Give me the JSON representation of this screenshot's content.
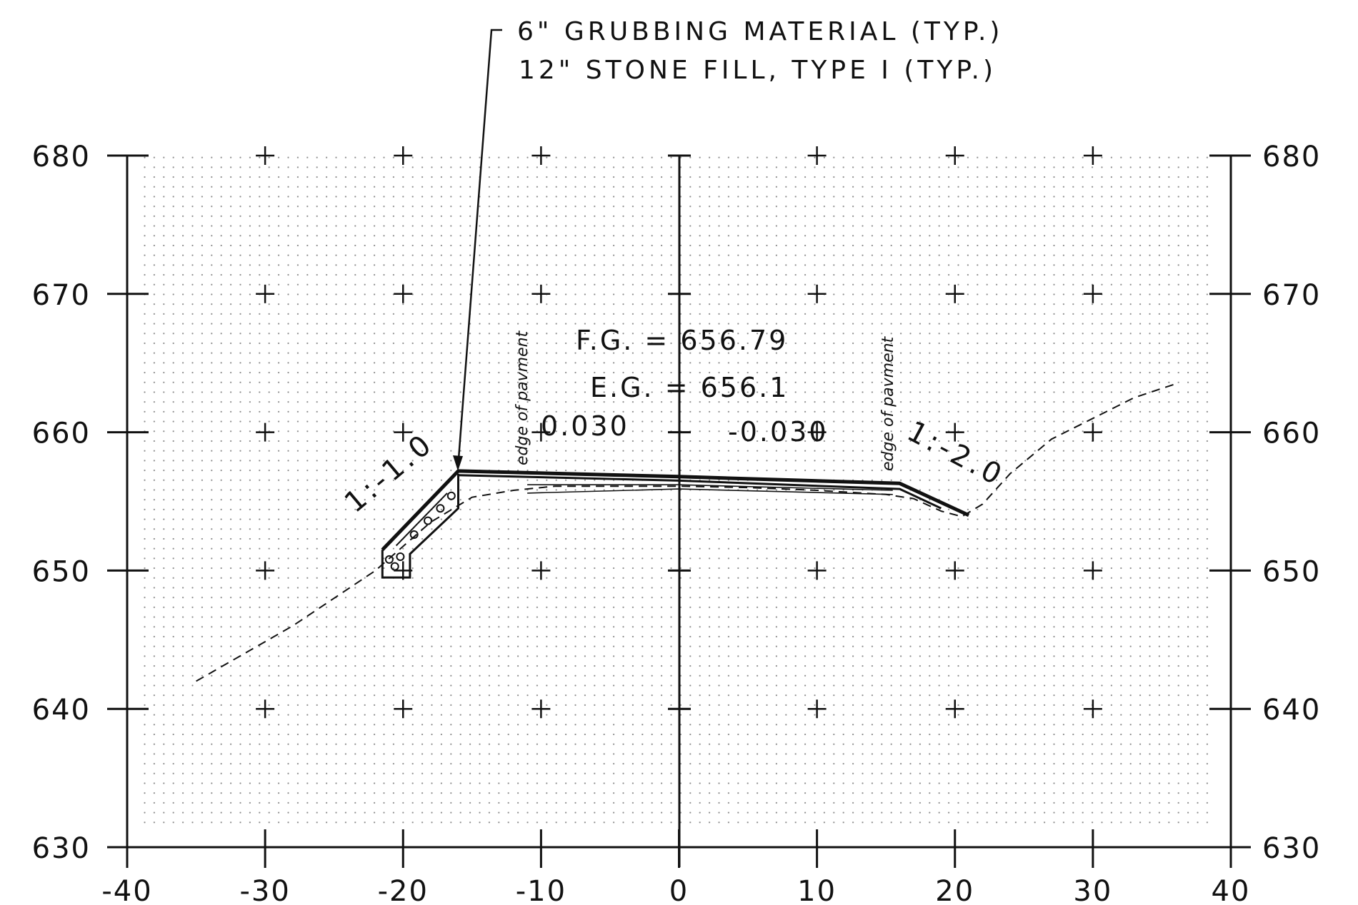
{
  "callout": {
    "line1": "6\" GRUBBING MATERIAL (TYP.)",
    "line2": "12\" STONE FILL, TYPE I (TYP.)"
  },
  "annotations": {
    "fg": "F.G. = 656.79",
    "eg": "E.G. = 656.1",
    "slope_left_pct": "0.030",
    "slope_right_pct": "-0.030",
    "side_slope_left": "1:-1.0",
    "side_slope_right": "1:-2.0",
    "edge_label_left": "edge of pavment",
    "edge_label_right": "edge of pavment"
  },
  "colors": {
    "line": "#111111",
    "grid_dot": "#8a8a8a",
    "background": "#ffffff"
  },
  "chart_data": {
    "type": "line",
    "title": "",
    "xlabel": "",
    "ylabel": "",
    "xlim": [
      -40,
      40
    ],
    "ylim": [
      630,
      680
    ],
    "x_ticks": [
      -40,
      -30,
      -20,
      -10,
      0,
      10,
      20,
      30,
      40
    ],
    "x_tick_labels": [
      "-40",
      "-30",
      "-20",
      "-10",
      "0",
      "10",
      "20",
      "30",
      "40"
    ],
    "y_ticks": [
      630,
      640,
      650,
      660,
      670,
      680
    ],
    "y_tick_labels": [
      "630",
      "640",
      "650",
      "660",
      "670",
      "680"
    ],
    "grid": "dotted",
    "series": [
      {
        "style": "dashed",
        "x": [
          -35,
          -28,
          -22,
          -18,
          -15,
          -12,
          -9,
          -5,
          0,
          5,
          10,
          15,
          17,
          19,
          20.5,
          22,
          24,
          27,
          30,
          33,
          36
        ],
        "y": [
          642,
          646,
          650,
          653.5,
          655.3,
          655.8,
          656.1,
          656.1,
          656.1,
          656,
          655.8,
          655.5,
          655.2,
          654.3,
          653.9,
          654.8,
          657,
          659.5,
          661,
          662.5,
          663.5
        ]
      },
      {
        "style": "solid-thick",
        "x": [
          -21.5,
          -16,
          0,
          16,
          21
        ],
        "y": [
          651.5,
          657.2,
          656.79,
          656.3,
          654
        ]
      },
      {
        "style": "solid",
        "x": [
          -16,
          0,
          16,
          19
        ],
        "y": [
          656.9,
          656.5,
          655.9,
          654.5
        ]
      },
      {
        "style": "solid-thin",
        "x": [
          -11,
          0,
          15.5
        ],
        "y": [
          655.6,
          655.9,
          655.5
        ]
      },
      {
        "style": "solid-thin",
        "x": [
          -11,
          0,
          15.5
        ],
        "y": [
          656.2,
          656.2,
          655.8
        ]
      }
    ]
  }
}
